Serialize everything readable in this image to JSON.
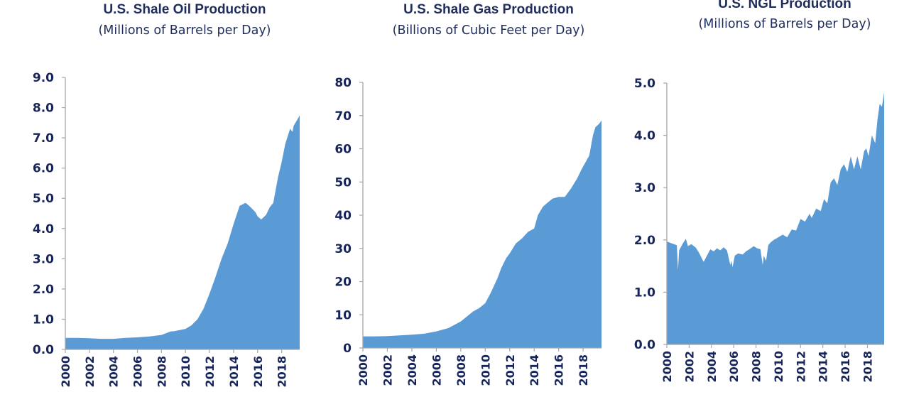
{
  "fill_color": "#5B9BD5",
  "text_color": "#1F2D5C",
  "chart_data": [
    {
      "type": "area",
      "title": "U.S. Shale Oil Production",
      "subtitle": "(Millions of Barrels per Day)",
      "xlabel": "",
      "ylabel": "",
      "xlim": [
        2000,
        2019.5
      ],
      "ylim": [
        0,
        9
      ],
      "yticks": [
        "0.0",
        "1.0",
        "2.0",
        "3.0",
        "4.0",
        "5.0",
        "6.0",
        "7.0",
        "8.0",
        "9.0"
      ],
      "xticks": [
        "2000",
        "2002",
        "2004",
        "2006",
        "2008",
        "2010",
        "2012",
        "2014",
        "2016",
        "2018"
      ],
      "grid": false,
      "legend": "none",
      "series": [
        {
          "name": "Shale Oil",
          "x": [
            2000,
            2001,
            2002,
            2003,
            2004,
            2005,
            2006,
            2007,
            2008,
            2008.8,
            2009,
            2010,
            2010.5,
            2011,
            2011.5,
            2012,
            2012.5,
            2013,
            2013.5,
            2014,
            2014.5,
            2015,
            2015.3,
            2015.8,
            2016,
            2016.3,
            2016.7,
            2017,
            2017.3,
            2017.7,
            2018,
            2018.3,
            2018.7,
            2018.9,
            2019,
            2019.3,
            2019.5
          ],
          "y": [
            0.38,
            0.38,
            0.37,
            0.35,
            0.35,
            0.38,
            0.4,
            0.43,
            0.48,
            0.6,
            0.6,
            0.68,
            0.8,
            1.0,
            1.35,
            1.85,
            2.4,
            3.0,
            3.5,
            4.15,
            4.75,
            4.85,
            4.75,
            4.55,
            4.4,
            4.3,
            4.45,
            4.7,
            4.85,
            5.7,
            6.2,
            6.8,
            7.3,
            7.2,
            7.4,
            7.6,
            7.75
          ]
        }
      ]
    },
    {
      "type": "area",
      "title": "U.S. Shale Gas Production",
      "subtitle": "(Billions of Cubic Feet per Day)",
      "xlabel": "",
      "ylabel": "",
      "xlim": [
        2000,
        2019.5
      ],
      "ylim": [
        0,
        80
      ],
      "yticks": [
        "0",
        "10",
        "20",
        "30",
        "40",
        "50",
        "60",
        "70",
        "80"
      ],
      "xticks": [
        "2000",
        "2002",
        "2004",
        "2006",
        "2008",
        "2010",
        "2012",
        "2014",
        "2016",
        "2018"
      ],
      "grid": false,
      "legend": "none",
      "series": [
        {
          "name": "Shale Gas",
          "x": [
            2000,
            2001,
            2002,
            2003,
            2004,
            2005,
            2006,
            2007,
            2008,
            2008.5,
            2009,
            2009.5,
            2010,
            2010.5,
            2011,
            2011.3,
            2011.7,
            2012,
            2012.5,
            2013,
            2013.5,
            2014,
            2014.3,
            2014.7,
            2015,
            2015.5,
            2016,
            2016.5,
            2017,
            2017.5,
            2017.9,
            2018.2,
            2018.5,
            2018.8,
            2019,
            2019.3,
            2019.5
          ],
          "y": [
            3.5,
            3.5,
            3.6,
            3.8,
            4.0,
            4.3,
            5.0,
            6.0,
            8.0,
            9.5,
            11.0,
            12.0,
            13.5,
            17.0,
            21.0,
            24.0,
            27.0,
            28.5,
            31.5,
            33.0,
            35.0,
            36.0,
            40.0,
            42.5,
            43.5,
            45.0,
            45.5,
            45.5,
            48.0,
            51.0,
            54.0,
            56.0,
            58.0,
            64.0,
            66.5,
            67.5,
            68.5
          ]
        }
      ]
    },
    {
      "type": "area",
      "title": "U.S. NGL Production",
      "subtitle": "(Millions of Barrels per Day)",
      "xlabel": "",
      "ylabel": "",
      "xlim": [
        2000,
        2019.5
      ],
      "ylim": [
        0,
        5
      ],
      "yticks": [
        "0.0",
        "1.0",
        "2.0",
        "3.0",
        "4.0",
        "5.0"
      ],
      "xticks": [
        "2000",
        "2002",
        "2004",
        "2006",
        "2008",
        "2010",
        "2012",
        "2014",
        "2016",
        "2018"
      ],
      "grid": false,
      "legend": "none",
      "series": [
        {
          "name": "NGL",
          "x": [
            2000,
            2000.5,
            2000.9,
            2001.0,
            2001.1,
            2001.4,
            2001.7,
            2001.9,
            2002.2,
            2002.6,
            2002.9,
            2003.3,
            2003.6,
            2003.9,
            2004.2,
            2004.5,
            2004.8,
            2005.1,
            2005.4,
            2005.7,
            2005.8,
            2005.9,
            2006.1,
            2006.4,
            2006.8,
            2007.1,
            2007.4,
            2007.8,
            2008.1,
            2008.4,
            2008.6,
            2008.7,
            2008.9,
            2009.1,
            2009.3,
            2009.6,
            2010,
            2010.4,
            2010.8,
            2011.2,
            2011.6,
            2012,
            2012.4,
            2012.8,
            2013,
            2013.4,
            2013.8,
            2014.1,
            2014.4,
            2014.7,
            2015,
            2015.3,
            2015.6,
            2015.9,
            2016.2,
            2016.5,
            2016.8,
            2017.1,
            2017.4,
            2017.7,
            2017.9,
            2018.1,
            2018.4,
            2018.7,
            2018.9,
            2019.1,
            2019.3,
            2019.5
          ],
          "y": [
            1.97,
            1.93,
            1.9,
            1.42,
            1.8,
            1.92,
            2.02,
            1.88,
            1.92,
            1.85,
            1.75,
            1.58,
            1.7,
            1.82,
            1.78,
            1.84,
            1.8,
            1.86,
            1.8,
            1.52,
            1.6,
            1.48,
            1.7,
            1.74,
            1.72,
            1.78,
            1.82,
            1.88,
            1.84,
            1.82,
            1.52,
            1.7,
            1.6,
            1.9,
            1.95,
            2.0,
            2.05,
            2.1,
            2.05,
            2.2,
            2.18,
            2.4,
            2.35,
            2.5,
            2.42,
            2.6,
            2.55,
            2.78,
            2.7,
            3.1,
            3.18,
            3.05,
            3.35,
            3.45,
            3.3,
            3.6,
            3.35,
            3.6,
            3.35,
            3.7,
            3.75,
            3.6,
            4.0,
            3.85,
            4.3,
            4.6,
            4.55,
            4.82
          ]
        }
      ]
    }
  ]
}
